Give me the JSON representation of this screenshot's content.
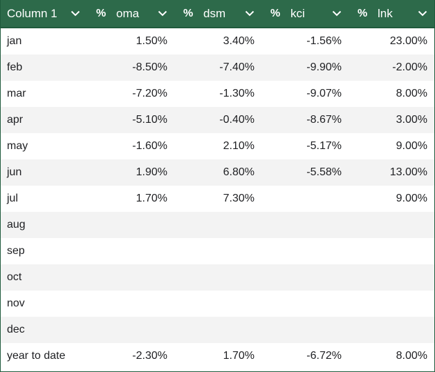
{
  "headers": [
    {
      "prefix": "",
      "label": "Column 1"
    },
    {
      "prefix": "%",
      "label": "oma"
    },
    {
      "prefix": "%",
      "label": "dsm"
    },
    {
      "prefix": "%",
      "label": "kci"
    },
    {
      "prefix": "%",
      "label": "lnk"
    }
  ],
  "rows": [
    {
      "label": "jan",
      "oma": "1.50%",
      "dsm": "3.40%",
      "kci": "-1.56%",
      "lnk": "23.00%"
    },
    {
      "label": "feb",
      "oma": "-8.50%",
      "dsm": "-7.40%",
      "kci": "-9.90%",
      "lnk": "-2.00%"
    },
    {
      "label": "mar",
      "oma": "-7.20%",
      "dsm": "-1.30%",
      "kci": "-9.07%",
      "lnk": "8.00%"
    },
    {
      "label": "apr",
      "oma": "-5.10%",
      "dsm": "-0.40%",
      "kci": "-8.67%",
      "lnk": "3.00%"
    },
    {
      "label": "may",
      "oma": "-1.60%",
      "dsm": "2.10%",
      "kci": "-5.17%",
      "lnk": "9.00%"
    },
    {
      "label": "jun",
      "oma": "1.90%",
      "dsm": "6.80%",
      "kci": "-5.58%",
      "lnk": "13.00%"
    },
    {
      "label": "jul",
      "oma": "1.70%",
      "dsm": "7.30%",
      "kci": "",
      "lnk": "9.00%"
    },
    {
      "label": "aug",
      "oma": "",
      "dsm": "",
      "kci": "",
      "lnk": ""
    },
    {
      "label": "sep",
      "oma": "",
      "dsm": "",
      "kci": "",
      "lnk": ""
    },
    {
      "label": "oct",
      "oma": "",
      "dsm": "",
      "kci": "",
      "lnk": ""
    },
    {
      "label": "nov",
      "oma": "",
      "dsm": "",
      "kci": "",
      "lnk": ""
    },
    {
      "label": "dec",
      "oma": "",
      "dsm": "",
      "kci": "",
      "lnk": ""
    },
    {
      "label": "year to date",
      "oma": "-2.30%",
      "dsm": "1.70%",
      "kci": "-6.72%",
      "lnk": "8.00%"
    }
  ],
  "colors": {
    "header_bg": "#2d6a4a",
    "header_text": "#ffffff",
    "row_alt_bg": "#f3f3f3",
    "border": "#1f5a3c"
  },
  "icons": {
    "sort": "chevron-down-icon",
    "type": "percent-type-icon"
  }
}
